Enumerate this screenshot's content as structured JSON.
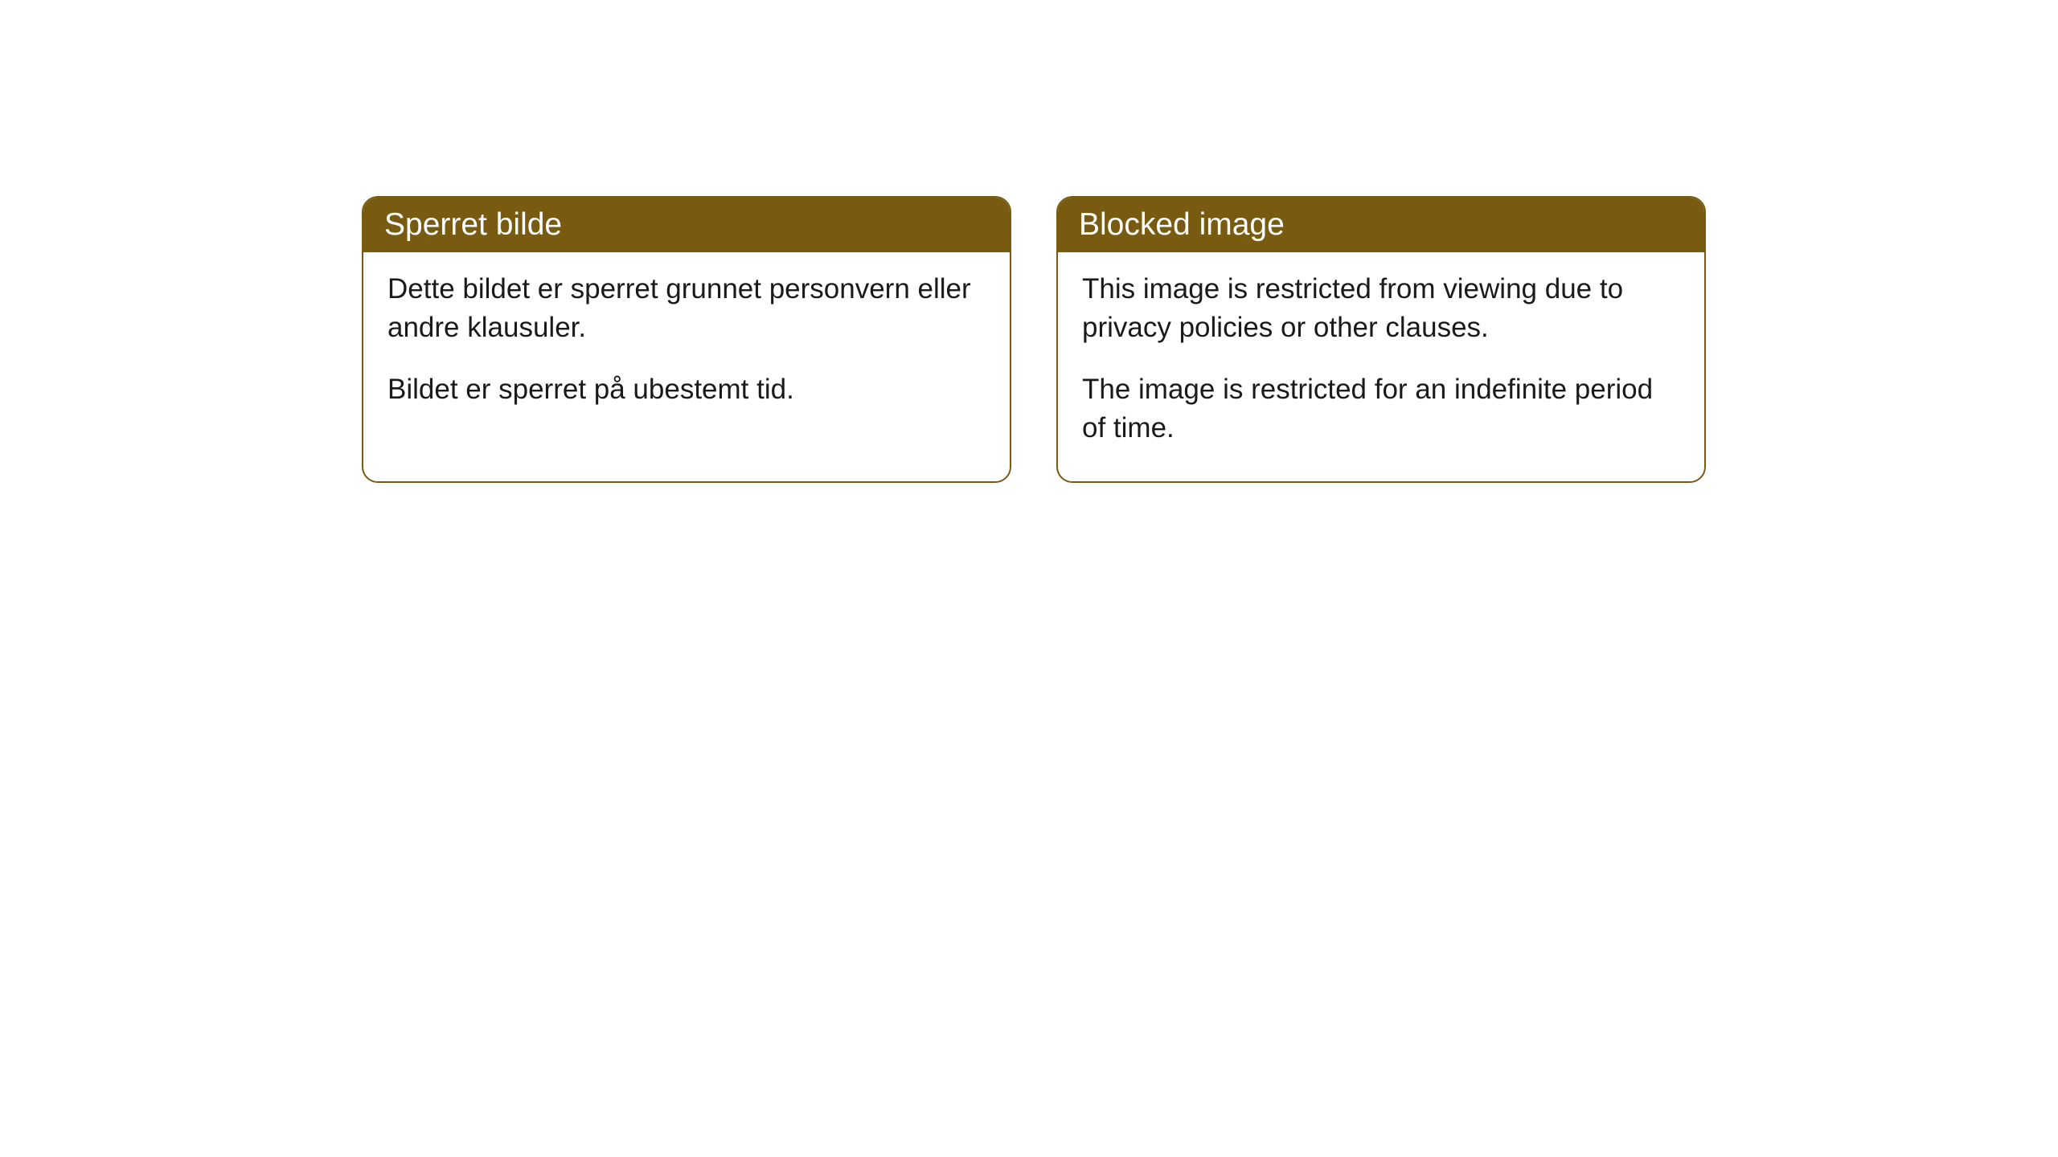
{
  "cards": [
    {
      "title": "Sperret bilde",
      "paragraph1": "Dette bildet er sperret grunnet personvern eller andre klausuler.",
      "paragraph2": "Bildet er sperret på ubestemt tid."
    },
    {
      "title": "Blocked image",
      "paragraph1": "This image is restricted from viewing due to privacy policies or other clauses.",
      "paragraph2": "The image is restricted for an indefinite period of time."
    }
  ],
  "styling": {
    "header_bg_color": "#785a10",
    "header_text_color": "#ffffff",
    "border_color": "#785a10",
    "body_bg_color": "#ffffff",
    "body_text_color": "#1a1a1a",
    "border_radius": 20,
    "header_fontsize": 39,
    "body_fontsize": 35
  }
}
